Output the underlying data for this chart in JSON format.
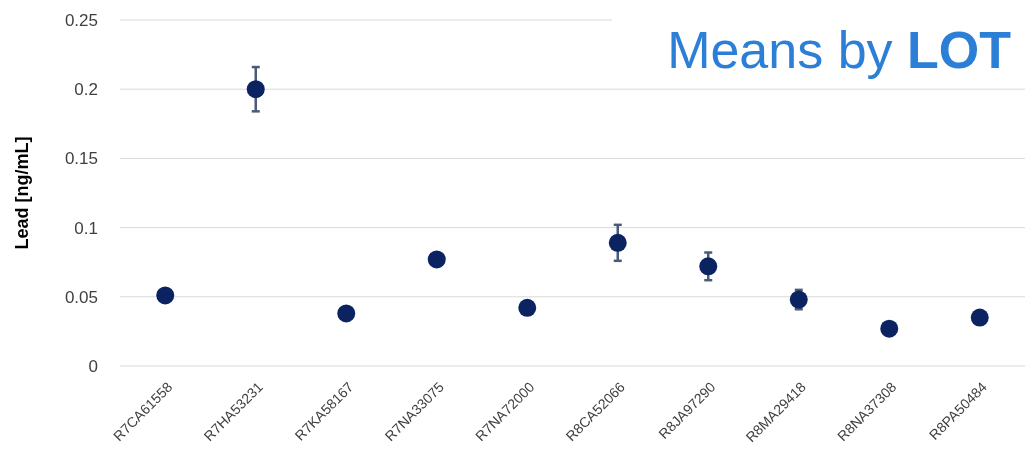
{
  "chart_data": {
    "type": "scatter",
    "title": "Means by LOT",
    "ylabel": "Lead [ng/mL]",
    "categories": [
      "R7CA61558",
      "R7HA53231",
      "R7KA58167",
      "R7NA33075",
      "R7NA72000",
      "R8CA52066",
      "R8JA97290",
      "R8MA29418",
      "R8NA37308",
      "R8PA50484"
    ],
    "series": [
      {
        "color": "#0b2461",
        "values": [
          0.051,
          0.2,
          0.038,
          0.077,
          0.042,
          0.089,
          0.072,
          0.048,
          0.027,
          0.035
        ],
        "errors": [
          null,
          0.016,
          null,
          0.003,
          null,
          0.013,
          0.01,
          0.007,
          null,
          null
        ]
      }
    ],
    "ylim": [
      0,
      0.25
    ],
    "yticks": [
      0,
      0.05,
      0.1,
      0.15,
      0.2,
      0.25
    ],
    "grid": "y",
    "marker": "circle"
  }
}
